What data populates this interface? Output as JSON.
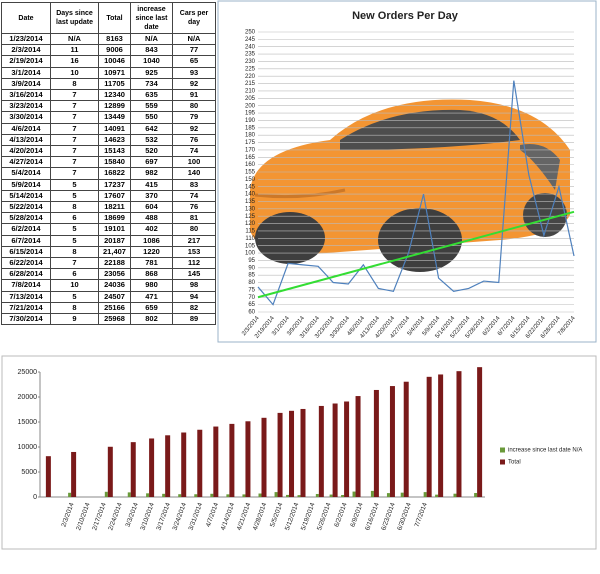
{
  "table": {
    "header": [
      "Date",
      "Days since last update",
      "Total",
      "increase since last date",
      "Cars per day"
    ],
    "rows": [
      [
        "1/23/2014",
        "N/A",
        "8163",
        "N/A",
        "N/A"
      ],
      [
        "2/3/2014",
        "11",
        "9006",
        "843",
        "77"
      ],
      [
        "2/19/2014",
        "16",
        "10046",
        "1040",
        "65"
      ],
      [
        "3/1/2014",
        "10",
        "10971",
        "925",
        "93"
      ],
      [
        "3/9/2014",
        "8",
        "11705",
        "734",
        "92"
      ],
      [
        "3/16/2014",
        "7",
        "12340",
        "635",
        "91"
      ],
      [
        "3/23/2014",
        "7",
        "12899",
        "559",
        "80"
      ],
      [
        "3/30/2014",
        "7",
        "13449",
        "550",
        "79"
      ],
      [
        "4/6/2014",
        "7",
        "14091",
        "642",
        "92"
      ],
      [
        "4/13/2014",
        "7",
        "14623",
        "532",
        "76"
      ],
      [
        "4/20/2014",
        "7",
        "15143",
        "520",
        "74"
      ],
      [
        "4/27/2014",
        "7",
        "15840",
        "697",
        "100"
      ],
      [
        "5/4/2014",
        "7",
        "16822",
        "982",
        "140"
      ],
      [
        "5/9/2014",
        "5",
        "17237",
        "415",
        "83"
      ],
      [
        "5/14/2014",
        "5",
        "17607",
        "370",
        "74"
      ],
      [
        "5/22/2014",
        "8",
        "18211",
        "604",
        "76"
      ],
      [
        "5/28/2014",
        "6",
        "18699",
        "488",
        "81"
      ],
      [
        "6/2/2014",
        "5",
        "19101",
        "402",
        "80"
      ],
      [
        "6/7/2014",
        "5",
        "20187",
        "1086",
        "217"
      ],
      [
        "6/15/2014",
        "8",
        "21,407",
        "1220",
        "153"
      ],
      [
        "6/22/2014",
        "7",
        "22188",
        "781",
        "112"
      ],
      [
        "6/28/2014",
        "6",
        "23056",
        "868",
        "145"
      ],
      [
        "7/8/2014",
        "10",
        "24036",
        "980",
        "98"
      ],
      [
        "7/13/2014",
        "5",
        "24507",
        "471",
        "94"
      ],
      [
        "7/21/2014",
        "8",
        "25166",
        "659",
        "82"
      ],
      [
        "7/30/2014",
        "9",
        "25968",
        "802",
        "89"
      ]
    ]
  },
  "chart_data": [
    {
      "type": "line",
      "title": "New Orders Per Day",
      "categories": [
        "2/3/2014",
        "2/19/2014",
        "3/1/2014",
        "3/9/2014",
        "3/16/2014",
        "3/23/2014",
        "3/30/2014",
        "4/6/2014",
        "4/13/2014",
        "4/20/2014",
        "4/27/2014",
        "5/4/2014",
        "5/9/2014",
        "5/14/2014",
        "5/22/2014",
        "5/28/2014",
        "6/2/2014",
        "6/7/2014",
        "6/15/2014",
        "6/22/2014",
        "6/28/2014",
        "7/8/2014"
      ],
      "series": [
        {
          "color": "#4f81bd",
          "values": [
            77,
            65,
            93,
            92,
            91,
            80,
            79,
            92,
            76,
            74,
            100,
            140,
            83,
            74,
            76,
            81,
            80,
            217,
            153,
            112,
            145,
            98
          ]
        }
      ],
      "trendline": {
        "color": "#33dd33",
        "values": [
          70,
          128
        ]
      },
      "ylim": [
        60,
        250
      ],
      "yticks": [
        60,
        65,
        70,
        75,
        80,
        85,
        90,
        95,
        100,
        105,
        110,
        115,
        120,
        125,
        130,
        135,
        140,
        145,
        150,
        155,
        160,
        165,
        170,
        175,
        180,
        185,
        190,
        195,
        200,
        205,
        210,
        215,
        220,
        225,
        230,
        235,
        240,
        245,
        250
      ],
      "grid": true
    },
    {
      "type": "bar",
      "x": [
        "1/23/2014",
        "2/3/2014",
        "2/19/2014",
        "3/1/2014",
        "3/9/2014",
        "3/16/2014",
        "3/23/2014",
        "3/30/2014",
        "4/6/2014",
        "4/13/2014",
        "4/20/2014",
        "4/27/2014",
        "5/4/2014",
        "5/9/2014",
        "5/14/2014",
        "5/22/2014",
        "5/28/2014",
        "6/2/2014",
        "6/7/2014",
        "6/15/2014",
        "6/22/2014",
        "6/28/2014",
        "7/8/2014",
        "7/13/2014",
        "7/21/2014",
        "7/30/2014"
      ],
      "series": [
        {
          "name": "increase since last date N/A",
          "color": "#6a9a3a",
          "values": [
            null,
            843,
            1040,
            925,
            734,
            635,
            559,
            550,
            642,
            532,
            520,
            697,
            982,
            415,
            370,
            604,
            488,
            402,
            1086,
            1220,
            781,
            868,
            980,
            471,
            659,
            802
          ]
        },
        {
          "name": "Total",
          "color": "#7a1a1a",
          "values": [
            8163,
            9006,
            10046,
            10971,
            11705,
            12340,
            12899,
            13449,
            14091,
            14623,
            15143,
            15840,
            16822,
            17237,
            17607,
            18211,
            18699,
            19101,
            20187,
            21407,
            22188,
            23056,
            24036,
            24507,
            25166,
            25968
          ]
        }
      ],
      "xlim": [
        "1/20/2014",
        "8/2/2014"
      ],
      "xticks": [
        "2/3/2014",
        "2/10/2014",
        "2/17/2014",
        "2/24/2014",
        "3/3/2014",
        "3/10/2014",
        "3/17/2014",
        "3/24/2014",
        "3/31/2014",
        "4/7/2014",
        "4/14/2014",
        "4/21/2014",
        "4/28/2014",
        "5/5/2014",
        "5/12/2014",
        "5/19/2014",
        "5/26/2014",
        "6/2/2014",
        "6/9/2014",
        "6/16/2014",
        "6/23/2014",
        "6/30/2014",
        "7/7/2014"
      ],
      "ylim": [
        0,
        25000
      ],
      "yticks": [
        0,
        5000,
        10000,
        15000,
        20000,
        25000
      ],
      "legend": "right"
    }
  ]
}
